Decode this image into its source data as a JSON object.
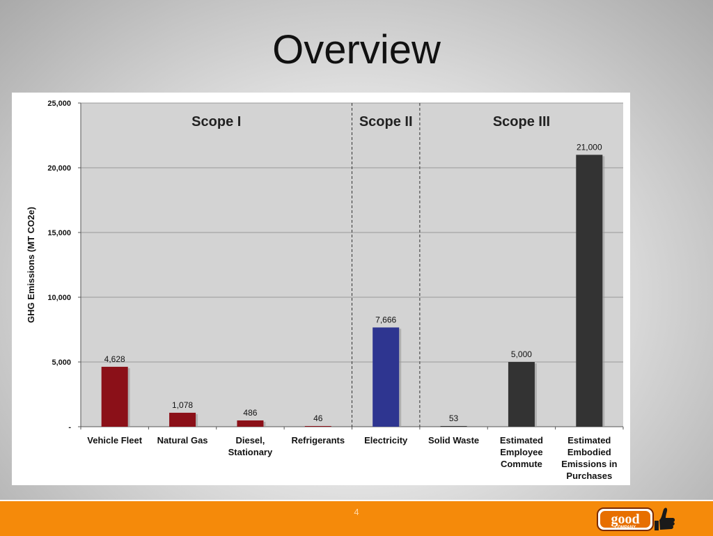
{
  "slide": {
    "title": "Overview",
    "page_number": "4",
    "logo_text": "good",
    "logo_subtext": "COMPANY"
  },
  "chart_data": {
    "type": "bar",
    "ylabel": "GHG Emissions (MT CO2e)",
    "ylim": [
      0,
      25000
    ],
    "ytick_values": [
      0,
      5000,
      10000,
      15000,
      20000,
      25000
    ],
    "ytick_labels": [
      "-",
      "5,000",
      "10,000",
      "15,000",
      "20,000",
      "25,000"
    ],
    "grid": true,
    "groups": [
      {
        "label": "Scope I",
        "start": 0,
        "end": 3
      },
      {
        "label": "Scope II",
        "start": 4,
        "end": 4
      },
      {
        "label": "Scope III",
        "start": 5,
        "end": 7
      }
    ],
    "categories": [
      [
        "Vehicle Fleet"
      ],
      [
        "Natural Gas"
      ],
      [
        "Diesel,",
        "Stationary"
      ],
      [
        "Refrigerants"
      ],
      [
        "Electricity"
      ],
      [
        "Solid Waste"
      ],
      [
        "Estimated",
        "Employee",
        "Commute"
      ],
      [
        "Estimated",
        "Embodied",
        "Emissions in",
        "Purchases"
      ]
    ],
    "values": [
      4628,
      1078,
      486,
      46,
      7666,
      53,
      5000,
      21000
    ],
    "value_labels": [
      "4,628",
      "1,078",
      "486",
      "46",
      "7,666",
      "53",
      "5,000",
      "21,000"
    ],
    "colors": {
      "scope1": "#8b1018",
      "scope2": "#2e3590",
      "scope3": "#333333",
      "plot_bg": "#d3d3d3",
      "grid": "#9a9a9a"
    },
    "bar_scope": [
      "scope1",
      "scope1",
      "scope1",
      "scope1",
      "scope2",
      "scope3",
      "scope3",
      "scope3"
    ]
  }
}
